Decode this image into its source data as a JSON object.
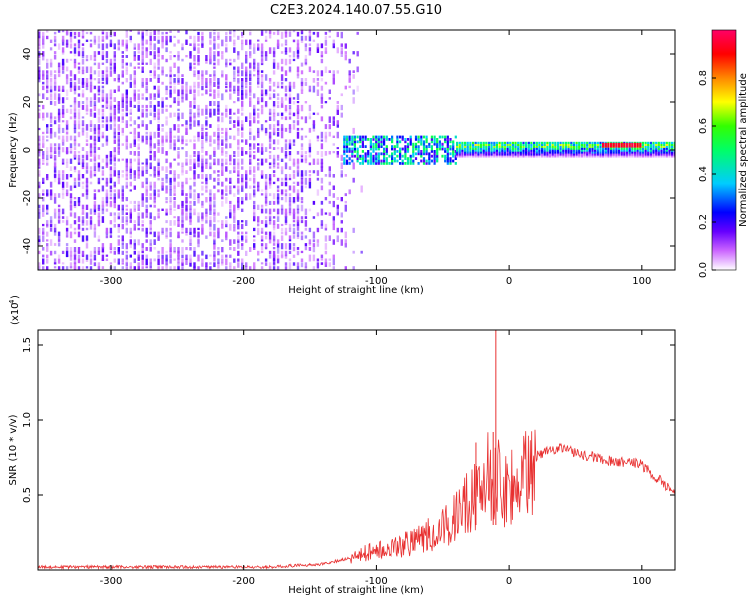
{
  "title": "C2E3.2024.140.07.55.G10",
  "chart_data": [
    {
      "type": "heatmap",
      "xlabel": "Height of straight line (km)",
      "ylabel": "Frequency (Hz)",
      "xlim": [
        -355,
        125
      ],
      "ylim": [
        -50,
        50
      ],
      "xticks": [
        -300,
        -200,
        -100,
        0,
        100
      ],
      "yticks": [
        -40,
        -20,
        0,
        20,
        40
      ],
      "colorbar": {
        "label": "Normalized spectral amplitude",
        "range": [
          0.0,
          1.0
        ],
        "ticks": [
          0.0,
          0.2,
          0.4,
          0.6,
          0.8
        ],
        "colors": [
          "#ffffff",
          "#cc66ff",
          "#6600ff",
          "#0000ff",
          "#00ccff",
          "#00ff66",
          "#33ff00",
          "#ffff00",
          "#ff8800",
          "#ff0000",
          "#ff0066"
        ]
      },
      "regions": [
        {
          "x": [
            -355,
            -125
          ],
          "freq": [
            -50,
            50
          ],
          "level": 0.12
        },
        {
          "x": [
            -125,
            -40
          ],
          "freq": [
            -6,
            6
          ],
          "level": 0.3
        },
        {
          "x": [
            -40,
            125
          ],
          "freq": [
            -3,
            3
          ],
          "level": 0.55
        },
        {
          "x": [
            70,
            100
          ],
          "freq": [
            1,
            3
          ],
          "level": 0.9
        }
      ]
    },
    {
      "type": "line",
      "xlabel": "Height of straight line (km)",
      "ylabel": "SNR (10 * v/v)",
      "y_multiplier": "(x10",
      "y_multiplier_exp": "4",
      "xlim": [
        -355,
        125
      ],
      "ylim": [
        0,
        1.6
      ],
      "xticks": [
        -300,
        -200,
        -100,
        0,
        100
      ],
      "yticks": [
        0.5,
        1.0,
        1.5
      ],
      "ytick_labels": [
        "0.5",
        "1.0",
        "1.5"
      ],
      "color": "#e83030",
      "x": [
        -355,
        -300,
        -250,
        -200,
        -180,
        -160,
        -140,
        -130,
        -120,
        -110,
        -100,
        -90,
        -80,
        -70,
        -60,
        -50,
        -40,
        -30,
        -20,
        -15,
        -10,
        -5,
        0,
        10,
        20,
        30,
        40,
        50,
        60,
        70,
        80,
        90,
        100,
        110,
        125
      ],
      "y": [
        0.02,
        0.02,
        0.02,
        0.02,
        0.02,
        0.03,
        0.04,
        0.06,
        0.08,
        0.12,
        0.14,
        0.16,
        0.18,
        0.22,
        0.26,
        0.3,
        0.38,
        0.5,
        0.62,
        0.7,
        0.68,
        0.6,
        0.62,
        0.68,
        0.76,
        0.8,
        0.82,
        0.78,
        0.76,
        0.74,
        0.72,
        0.72,
        0.7,
        0.62,
        0.52
      ],
      "peaks": [
        {
          "x": -10,
          "y": 1.6
        },
        {
          "x": -12,
          "y": 0.92
        },
        {
          "x": -25,
          "y": 0.85
        }
      ]
    }
  ]
}
